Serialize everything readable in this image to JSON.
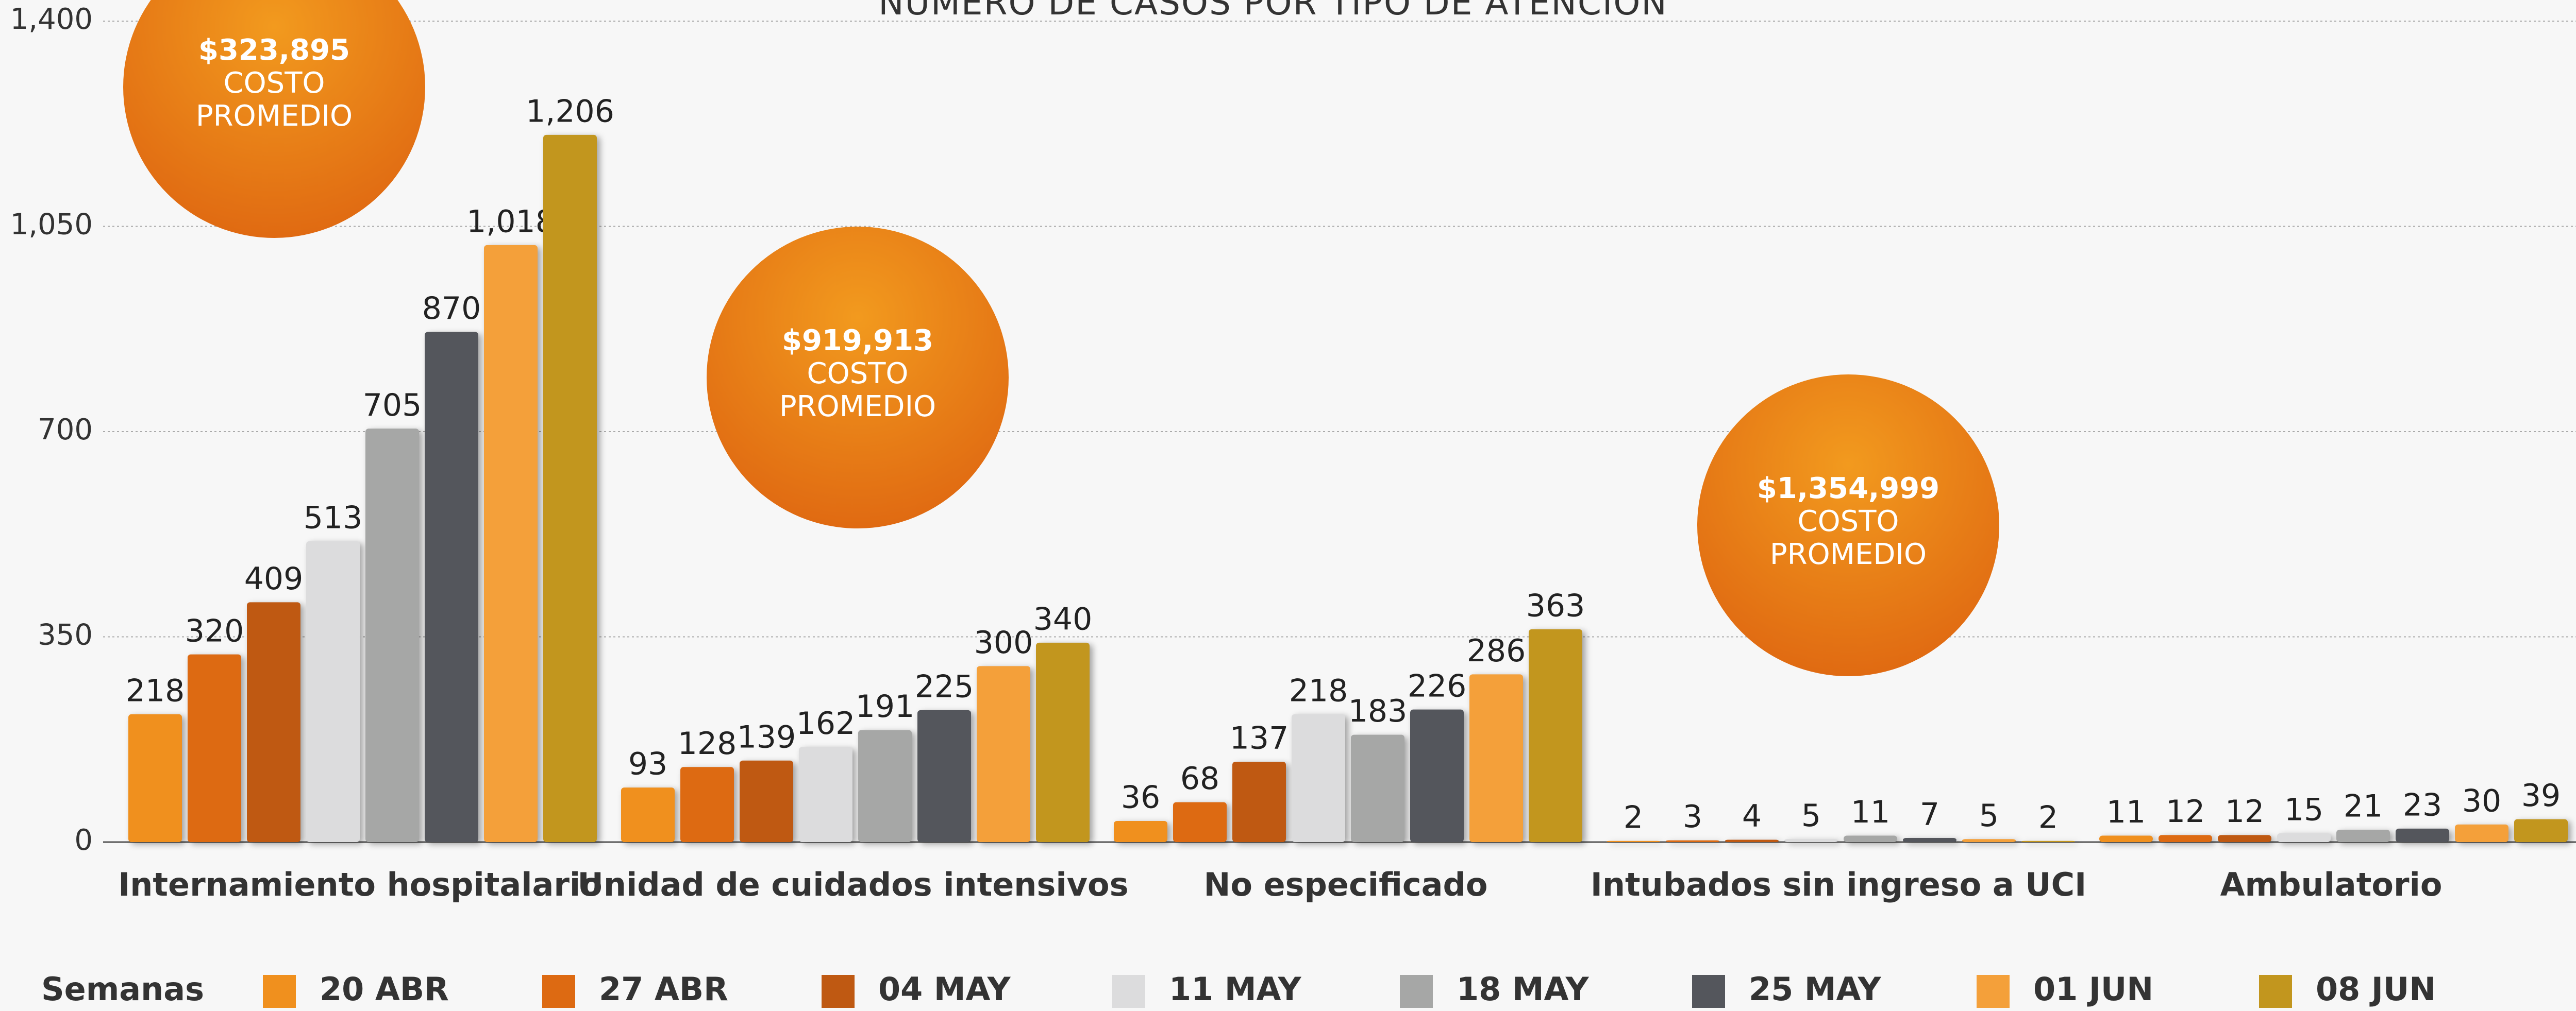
{
  "chart_data": {
    "type": "bar",
    "title": "NÚMERO DE CASOS POR TIPO DE ATENCIÓN",
    "categories": [
      "Internamiento hospitalario",
      "Unidad de cuidados intensivos",
      "No especificado",
      "Intubados sin ingreso a UCI",
      "Ambulatorio"
    ],
    "legend_title": "Semanas",
    "series": [
      {
        "name": "20 ABR",
        "color": "#f0901e",
        "values": [
          218,
          93,
          36,
          2,
          11
        ]
      },
      {
        "name": "27 ABR",
        "color": "#dd6a12",
        "values": [
          320,
          128,
          68,
          3,
          12
        ]
      },
      {
        "name": "04 MAY",
        "color": "#bf5912",
        "values": [
          409,
          139,
          137,
          4,
          12
        ]
      },
      {
        "name": "11 MAY",
        "color": "#dcdcdd",
        "values": [
          513,
          162,
          218,
          5,
          15
        ]
      },
      {
        "name": "18 MAY",
        "color": "#a6a7a6",
        "values": [
          705,
          191,
          183,
          11,
          21
        ]
      },
      {
        "name": "25 MAY",
        "color": "#54565c",
        "values": [
          870,
          225,
          226,
          7,
          23
        ]
      },
      {
        "name": "01 JUN",
        "color": "#f4a03a",
        "values": [
          1018,
          300,
          286,
          5,
          30
        ],
        "value_labels": [
          "1,018",
          "300",
          "286",
          "5",
          "30"
        ]
      },
      {
        "name": "08 JUN",
        "color": "#c2961e",
        "values": [
          1206,
          340,
          363,
          2,
          39
        ],
        "value_labels": [
          "1,206",
          "340",
          "363",
          "2",
          "39"
        ]
      }
    ],
    "ylim": [
      0,
      1400
    ],
    "yticks": [
      0,
      350,
      700,
      {
        "value": 1050,
        "label": "1,050"
      },
      {
        "value": 1400,
        "label": "1,400"
      }
    ],
    "grid": true,
    "annotations": [
      {
        "text": [
          "$323,895",
          "COSTO",
          "PROMEDIO"
        ]
      },
      {
        "text": [
          "$919,913",
          "COSTO",
          "PROMEDIO"
        ]
      },
      {
        "text": [
          "$1,354,999",
          "COSTO",
          "PROMEDIO"
        ]
      }
    ]
  }
}
